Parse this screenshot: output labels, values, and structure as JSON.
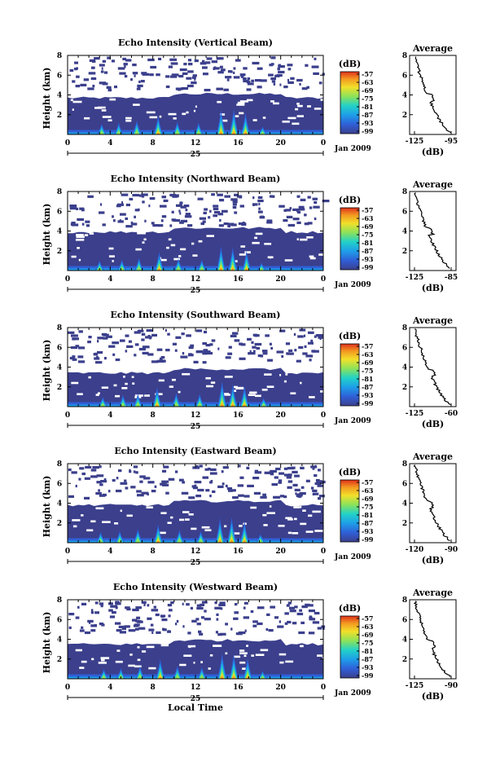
{
  "chart_data": [
    {
      "type": "heatmap",
      "title": "Echo Intensity (Vertical Beam)",
      "ylabel": "Height (km)",
      "xlabel": "",
      "x_ticks": [
        "0",
        "4",
        "8",
        "12",
        "16",
        "20",
        "0"
      ],
      "date_label": "25",
      "date_right": "Jan 2009",
      "y_ticks": [
        "2",
        "4",
        "6",
        "8"
      ],
      "colorbar": {
        "unit": "(dB)",
        "ticks": [
          "-57",
          "-63",
          "-69",
          "-75",
          "-81",
          "-87",
          "-93",
          "-99"
        ]
      },
      "cloud_top_km": 3.7,
      "average": {
        "title": "Average",
        "xlabel": "(dB)",
        "x_ticks": [
          "-125",
          "-95"
        ],
        "xlim": [
          -125,
          -95
        ],
        "y_ticks": [
          "2",
          "4",
          "6",
          "8"
        ]
      },
      "bursts": [
        [
          3.2,
          1.1
        ],
        [
          4.8,
          1.2
        ],
        [
          6.5,
          1.4
        ],
        [
          8.5,
          1.9
        ],
        [
          10.3,
          1.3
        ],
        [
          12.3,
          1.2
        ],
        [
          14.4,
          2.5
        ],
        [
          15.6,
          2.6
        ],
        [
          16.7,
          2.2
        ],
        [
          18.3,
          0.8
        ]
      ]
    },
    {
      "type": "heatmap",
      "title": "Echo Intensity (Northward Beam)",
      "ylabel": "Height (km)",
      "xlabel": "",
      "x_ticks": [
        "0",
        "4",
        "8",
        "12",
        "16",
        "20",
        "0"
      ],
      "date_label": "25",
      "date_right": "Jan 2009",
      "y_ticks": [
        "2",
        "4",
        "6",
        "8"
      ],
      "colorbar": {
        "unit": "(dB)",
        "ticks": [
          "-57",
          "-63",
          "-69",
          "-75",
          "-81",
          "-87",
          "-93",
          "-99"
        ]
      },
      "cloud_top_km": 3.9,
      "average": {
        "title": "Average",
        "xlabel": "(dB)",
        "x_ticks": [
          "-125",
          "-85"
        ],
        "xlim": [
          -125,
          -85
        ],
        "y_ticks": [
          "2",
          "4",
          "6",
          "8"
        ]
      },
      "bursts": [
        [
          3.0,
          1.0
        ],
        [
          5.1,
          1.1
        ],
        [
          6.7,
          1.3
        ],
        [
          8.6,
          1.9
        ],
        [
          10.4,
          1.2
        ],
        [
          12.6,
          1.1
        ],
        [
          14.4,
          2.5
        ],
        [
          15.5,
          2.4
        ],
        [
          16.8,
          2.0
        ],
        [
          18.2,
          0.8
        ]
      ]
    },
    {
      "type": "heatmap",
      "title": "Echo Intensity (Southward Beam)",
      "ylabel": "Height (km)",
      "xlabel": "",
      "x_ticks": [
        "0",
        "4",
        "8",
        "12",
        "16",
        "20",
        "0"
      ],
      "date_label": "25",
      "date_right": "Jan 2009",
      "y_ticks": [
        "2",
        "4",
        "6",
        "8"
      ],
      "colorbar": {
        "unit": "(dB)",
        "ticks": [
          "-57",
          "-63",
          "-69",
          "-75",
          "-81",
          "-87",
          "-93",
          "-99"
        ]
      },
      "cloud_top_km": 3.4,
      "average": {
        "title": "Average",
        "xlabel": "(dB)",
        "x_ticks": [
          "-125",
          "-60"
        ],
        "xlim": [
          -125,
          -60
        ],
        "y_ticks": [
          "2",
          "4",
          "6",
          "8"
        ]
      },
      "bursts": [
        [
          3.3,
          1.0
        ],
        [
          5.2,
          1.2
        ],
        [
          6.6,
          1.3
        ],
        [
          8.4,
          2.0
        ],
        [
          10.2,
          1.4
        ],
        [
          12.4,
          1.3
        ],
        [
          14.5,
          2.6
        ],
        [
          15.5,
          2.3
        ],
        [
          16.6,
          2.1
        ],
        [
          18.4,
          0.9
        ]
      ]
    },
    {
      "type": "heatmap",
      "title": "Echo Intensity (Eastward Beam)",
      "ylabel": "Height (km)",
      "xlabel": "",
      "x_ticks": [
        "0",
        "4",
        "8",
        "12",
        "16",
        "20",
        "0"
      ],
      "date_label": "25",
      "date_right": "Jan 2009",
      "y_ticks": [
        "2",
        "4",
        "6",
        "8"
      ],
      "colorbar": {
        "unit": "(dB)",
        "ticks": [
          "-57",
          "-63",
          "-69",
          "-75",
          "-81",
          "-87",
          "-93",
          "-99"
        ]
      },
      "cloud_top_km": 3.8,
      "average": {
        "title": "Average",
        "xlabel": "(dB)",
        "x_ticks": [
          "-120",
          "-90"
        ],
        "xlim": [
          -120,
          -90
        ],
        "y_ticks": [
          "2",
          "4",
          "6",
          "8"
        ]
      },
      "bursts": [
        [
          3.1,
          1.1
        ],
        [
          4.9,
          1.2
        ],
        [
          6.6,
          1.4
        ],
        [
          8.5,
          1.9
        ],
        [
          10.5,
          1.3
        ],
        [
          12.5,
          1.2
        ],
        [
          14.3,
          2.5
        ],
        [
          15.4,
          2.6
        ],
        [
          16.6,
          2.2
        ],
        [
          18.1,
          0.9
        ]
      ]
    },
    {
      "type": "heatmap",
      "title": "Echo Intensity (Westward Beam)",
      "ylabel": "Height (km)",
      "xlabel": "Local Time",
      "x_ticks": [
        "0",
        "4",
        "8",
        "12",
        "16",
        "20",
        "0"
      ],
      "date_label": "25",
      "date_right": "Jan 2009",
      "y_ticks": [
        "2",
        "4",
        "6",
        "8"
      ],
      "colorbar": {
        "unit": "(dB)",
        "ticks": [
          "-57",
          "-63",
          "-69",
          "-75",
          "-81",
          "-87",
          "-93",
          "-99"
        ]
      },
      "cloud_top_km": 3.5,
      "average": {
        "title": "Average",
        "xlabel": "(dB)",
        "x_ticks": [
          "-125",
          "-90"
        ],
        "xlim": [
          -125,
          -90
        ],
        "y_ticks": [
          "2",
          "4",
          "6",
          "8"
        ]
      },
      "bursts": [
        [
          3.4,
          1.0
        ],
        [
          5.0,
          1.1
        ],
        [
          6.8,
          1.3
        ],
        [
          8.7,
          2.0
        ],
        [
          10.3,
          1.3
        ],
        [
          12.6,
          1.2
        ],
        [
          14.5,
          2.6
        ],
        [
          15.6,
          2.5
        ],
        [
          16.9,
          2.1
        ],
        [
          18.3,
          0.8
        ]
      ]
    }
  ]
}
